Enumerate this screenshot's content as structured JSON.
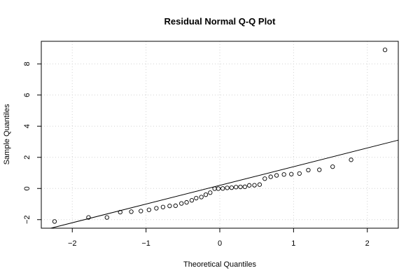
{
  "chart_data": {
    "type": "scatter",
    "title": "Residual Normal Q-Q Plot",
    "xlabel": "Theoretical Quantiles",
    "ylabel": "Sample Quantiles",
    "xlim": [
      -2.42,
      2.42
    ],
    "ylim": [
      -2.55,
      9.45
    ],
    "xticks": [
      -2,
      -1,
      0,
      1,
      2
    ],
    "yticks": [
      -2,
      0,
      2,
      4,
      6,
      8
    ],
    "grid": true,
    "reference_line": {
      "intercept": 0.2,
      "slope": 1.2
    },
    "points": [
      [
        -2.24,
        -2.12
      ],
      [
        -1.78,
        -1.86
      ],
      [
        -1.53,
        -1.86
      ],
      [
        -1.35,
        -1.52
      ],
      [
        -1.2,
        -1.49
      ],
      [
        -1.07,
        -1.45
      ],
      [
        -0.96,
        -1.37
      ],
      [
        -0.86,
        -1.27
      ],
      [
        -0.77,
        -1.19
      ],
      [
        -0.68,
        -1.12
      ],
      [
        -0.6,
        -1.11
      ],
      [
        -0.52,
        -0.96
      ],
      [
        -0.45,
        -0.89
      ],
      [
        -0.38,
        -0.76
      ],
      [
        -0.32,
        -0.62
      ],
      [
        -0.25,
        -0.55
      ],
      [
        -0.19,
        -0.4
      ],
      [
        -0.13,
        -0.27
      ],
      [
        -0.07,
        -0.01
      ],
      [
        -0.02,
        -0.01
      ],
      [
        0.04,
        0.0
      ],
      [
        0.1,
        0.04
      ],
      [
        0.16,
        0.05
      ],
      [
        0.22,
        0.09
      ],
      [
        0.28,
        0.1
      ],
      [
        0.34,
        0.11
      ],
      [
        0.4,
        0.2
      ],
      [
        0.47,
        0.21
      ],
      [
        0.54,
        0.25
      ],
      [
        0.61,
        0.63
      ],
      [
        0.69,
        0.75
      ],
      [
        0.77,
        0.84
      ],
      [
        0.87,
        0.9
      ],
      [
        0.97,
        0.92
      ],
      [
        1.08,
        0.96
      ],
      [
        1.2,
        1.18
      ],
      [
        1.35,
        1.2
      ],
      [
        1.53,
        1.4
      ],
      [
        1.78,
        1.84
      ],
      [
        2.24,
        8.9
      ]
    ]
  }
}
